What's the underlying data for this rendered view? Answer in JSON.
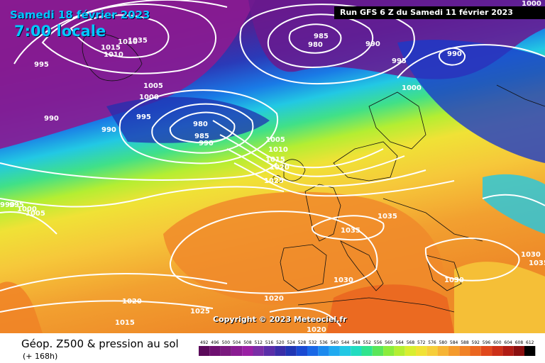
{
  "header": {
    "date_title": "Samedi 18 février 2023",
    "time_title": "7:00 locale",
    "run_info": "Run GFS 6 Z du Samedi 11 février 2023",
    "top_right_label": "1000"
  },
  "footer": {
    "param_title": "Géop. Z500 & pression au sol",
    "lead_time": "(+ 168h)"
  },
  "copyright": "Copyright © 2023 Meteociel.fr",
  "legend": {
    "values": [
      "492",
      "496",
      "500",
      "504",
      "508",
      "512",
      "516",
      "520",
      "524",
      "528",
      "532",
      "536",
      "540",
      "544",
      "548",
      "552",
      "556",
      "560",
      "564",
      "568",
      "572",
      "576",
      "580",
      "584",
      "588",
      "592",
      "596",
      "600",
      "604",
      "608",
      "612"
    ],
    "colors": [
      "#5a0a5a",
      "#6e1070",
      "#7a1a7e",
      "#8a1c92",
      "#9a20a4",
      "#7a2ea6",
      "#5a2ea8",
      "#3a2ea8",
      "#2036b4",
      "#1a4ad2",
      "#1a68e6",
      "#1c8aee",
      "#20aaf0",
      "#22c8e4",
      "#22dcc0",
      "#30e48e",
      "#5ae65a",
      "#8aec3c",
      "#b4ee32",
      "#d8ee30",
      "#f0e236",
      "#f6ce3a",
      "#f6b434",
      "#f49a2c",
      "#f08226",
      "#ea6620",
      "#e0481c",
      "#cc3018",
      "#b01c14",
      "#8a1010",
      "#000000"
    ]
  },
  "isobars": [
    {
      "value": "1035",
      "id": "iso-1035-nw"
    },
    {
      "value": "1010",
      "id": "iso-1010-nw"
    },
    {
      "value": "1015",
      "id": "iso-1015-nw-a"
    },
    {
      "value": "1010",
      "id": "iso-1010-nw-b"
    },
    {
      "value": "995",
      "id": "iso-995-w"
    },
    {
      "value": "1005",
      "id": "iso-1005-n"
    },
    {
      "value": "1000",
      "id": "iso-1000-n"
    },
    {
      "value": "995",
      "id": "iso-995-n"
    },
    {
      "value": "990",
      "id": "iso-990-w"
    },
    {
      "value": "990",
      "id": "iso-990-nw"
    },
    {
      "value": "980",
      "id": "iso-980-low"
    },
    {
      "value": "985",
      "id": "iso-985-low"
    },
    {
      "value": "990",
      "id": "iso-990-low"
    },
    {
      "value": "985",
      "id": "iso-985-north"
    },
    {
      "value": "980",
      "id": "iso-980-north"
    },
    {
      "value": "990",
      "id": "iso-990-north"
    },
    {
      "value": "995",
      "id": "iso-995-ne"
    },
    {
      "value": "1000",
      "id": "iso-1000-ne"
    },
    {
      "value": "990",
      "id": "iso-990-ne"
    },
    {
      "value": "1005",
      "id": "iso-1005-uk"
    },
    {
      "value": "1010",
      "id": "iso-1010-uk"
    },
    {
      "value": "1015",
      "id": "iso-1015-uk"
    },
    {
      "value": "1020",
      "id": "iso-1020-uk"
    },
    {
      "value": "1025",
      "id": "iso-1025-uk"
    },
    {
      "value": "990",
      "id": "iso-990-far-w"
    },
    {
      "value": "995",
      "id": "iso-995-far-w"
    },
    {
      "value": "1000",
      "id": "iso-1000-far-w"
    },
    {
      "value": "1005",
      "id": "iso-1005-far-w"
    },
    {
      "value": "1035",
      "id": "iso-1035-fr"
    },
    {
      "value": "1035",
      "id": "iso-1035-de"
    },
    {
      "value": "1030",
      "id": "iso-1030-es"
    },
    {
      "value": "1030",
      "id": "iso-1030-gr"
    },
    {
      "value": "1030",
      "id": "iso-1030-e"
    },
    {
      "value": "1035",
      "id": "iso-1035-e"
    },
    {
      "value": "1020",
      "id": "iso-1020-atl"
    },
    {
      "value": "1020",
      "id": "iso-1020-sw"
    },
    {
      "value": "1025",
      "id": "iso-1025-sw"
    },
    {
      "value": "1015",
      "id": "iso-1015-sw"
    },
    {
      "value": "1020",
      "id": "iso-1020-s"
    }
  ]
}
